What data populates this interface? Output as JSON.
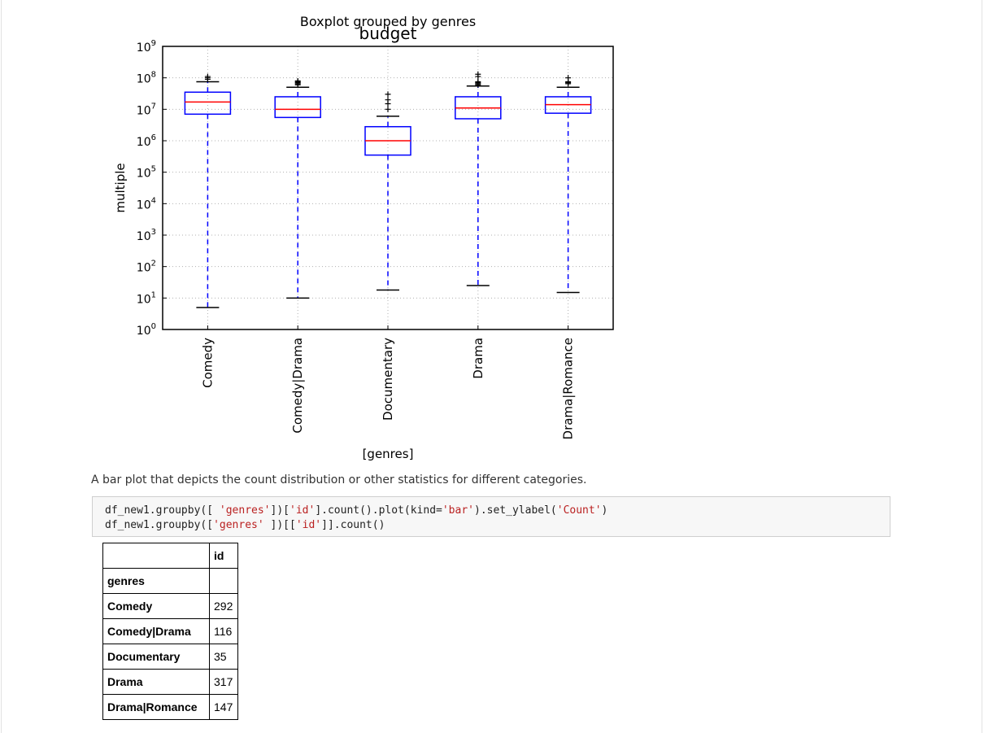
{
  "chart_data": {
    "type": "boxplot",
    "suptitle": "Boxplot grouped by genres",
    "title": "budget",
    "xlabel": "[genres]",
    "ylabel": "multiple",
    "yscale": "log",
    "ylim": [
      1,
      1000000000
    ],
    "y_tick_labels": [
      {
        "base": "10",
        "exp": "0",
        "value": 1
      },
      {
        "base": "10",
        "exp": "1",
        "value": 10
      },
      {
        "base": "10",
        "exp": "2",
        "value": 100
      },
      {
        "base": "10",
        "exp": "3",
        "value": 1000
      },
      {
        "base": "10",
        "exp": "4",
        "value": 10000
      },
      {
        "base": "10",
        "exp": "5",
        "value": 100000
      },
      {
        "base": "10",
        "exp": "6",
        "value": 1000000
      },
      {
        "base": "10",
        "exp": "7",
        "value": 10000000
      },
      {
        "base": "10",
        "exp": "8",
        "value": 100000000
      },
      {
        "base": "10",
        "exp": "9",
        "value": 1000000000
      }
    ],
    "grid": true,
    "colors": {
      "box": "#0000ff",
      "median": "#ff0000",
      "whisker": "#0000ff",
      "cap": "#000000",
      "grid": "#b0b0b0"
    },
    "categories": [
      "Comedy",
      "Comedy|Drama",
      "Documentary",
      "Drama",
      "Drama|Romance"
    ],
    "boxes": [
      {
        "whislo": 5,
        "q1": 7000000,
        "med": 17000000,
        "q3": 35000000,
        "whishi": 75000000,
        "fliers": [
          90000000,
          100000000,
          110000000
        ]
      },
      {
        "whislo": 10,
        "q1": 5500000,
        "med": 10000000,
        "q3": 25000000,
        "whishi": 50000000,
        "fliers": [
          60000000,
          65000000,
          70000000,
          75000000,
          80000000
        ]
      },
      {
        "whislo": 18,
        "q1": 350000,
        "med": 1000000,
        "q3": 2800000,
        "whishi": 6000000,
        "fliers": [
          10000000,
          15000000,
          20000000,
          30000000
        ]
      },
      {
        "whislo": 25,
        "q1": 5000000,
        "med": 11000000,
        "q3": 25000000,
        "whishi": 55000000,
        "fliers": [
          60000000,
          65000000,
          70000000,
          75000000,
          110000000,
          130000000
        ]
      },
      {
        "whislo": 15,
        "q1": 7500000,
        "med": 14000000,
        "q3": 25000000,
        "whishi": 50000000,
        "fliers": [
          65000000,
          70000000,
          75000000,
          100000000
        ]
      }
    ]
  },
  "markdown_text": "A bar plot that depicts the count distribution or other statistics for different categories.",
  "code": {
    "line1": {
      "a": "df_new1.groupby([ ",
      "b": "'genres'",
      "c": "])[",
      "d": "'id'",
      "e": "].count().plot(kind=",
      "f": "'bar'",
      "g": ").set_ylabel(",
      "h": "'Count'",
      "i": ")"
    },
    "line2": {
      "a": "df_new1.groupby([",
      "b": "'genres'",
      "c": " ])[[",
      "d": "'id'",
      "e": "]].count()"
    }
  },
  "table": {
    "column_header": "id",
    "index_name": "genres",
    "rows": [
      {
        "genre": "Comedy",
        "id": "292"
      },
      {
        "genre": "Comedy|Drama",
        "id": "116"
      },
      {
        "genre": "Documentary",
        "id": "35"
      },
      {
        "genre": "Drama",
        "id": "317"
      },
      {
        "genre": "Drama|Romance",
        "id": "147"
      }
    ]
  }
}
